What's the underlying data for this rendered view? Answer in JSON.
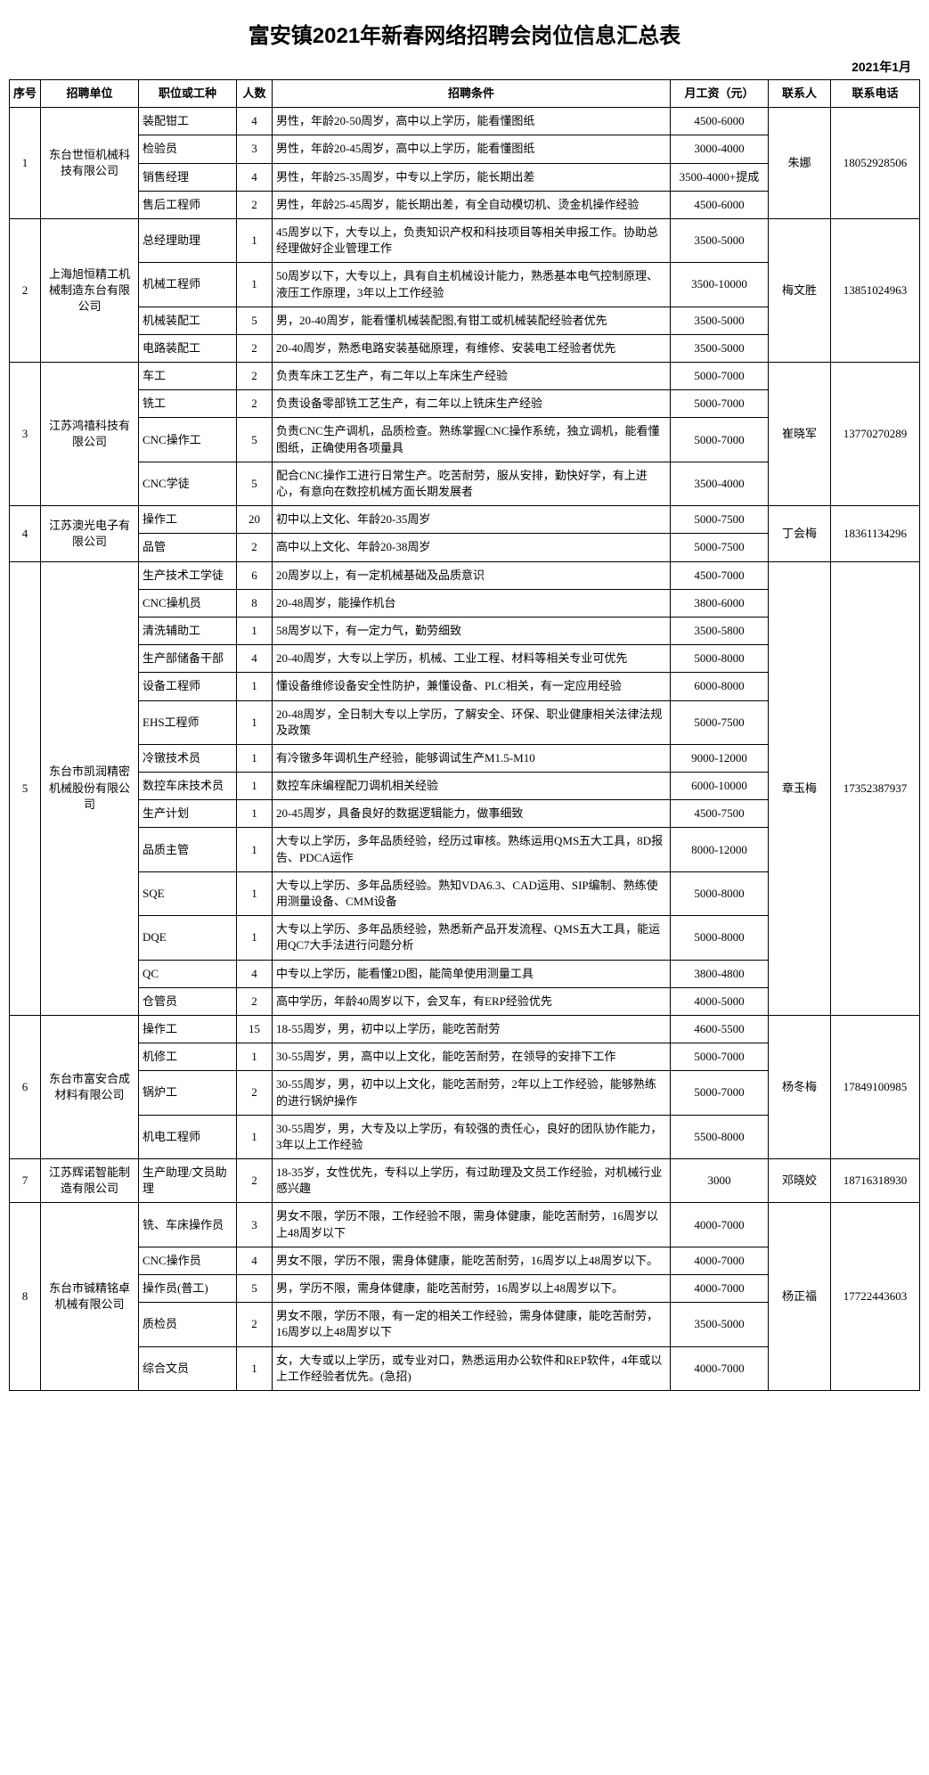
{
  "title": "富安镇2021年新春网络招聘会岗位信息汇总表",
  "date": "2021年1月",
  "headers": {
    "idx": "序号",
    "company": "招聘单位",
    "position": "职位或工种",
    "count": "人数",
    "requirements": "招聘条件",
    "salary": "月工资（元）",
    "contact": "联系人",
    "phone": "联系电话"
  },
  "companies": [
    {
      "idx": "1",
      "name": "东台世恒机械科技有限公司",
      "contact": "朱娜",
      "phone": "18052928506",
      "positions": [
        {
          "pos": "装配钳工",
          "count": "4",
          "req": "男性，年龄20-50周岁，高中以上学历，能看懂图纸",
          "salary": "4500-6000"
        },
        {
          "pos": "检验员",
          "count": "3",
          "req": "男性，年龄20-45周岁，高中以上学历，能看懂图纸",
          "salary": "3000-4000"
        },
        {
          "pos": "销售经理",
          "count": "4",
          "req": "男性，年龄25-35周岁，中专以上学历，能长期出差",
          "salary": "3500-4000+提成"
        },
        {
          "pos": "售后工程师",
          "count": "2",
          "req": "男性，年龄25-45周岁，能长期出差，有全自动模切机、烫金机操作经验",
          "salary": "4500-6000"
        }
      ]
    },
    {
      "idx": "2",
      "name": "上海旭恒精工机械制造东台有限公司",
      "contact": "梅文胜",
      "phone": "13851024963",
      "positions": [
        {
          "pos": "总经理助理",
          "count": "1",
          "req": "45周岁以下，大专以上，负责知识产权和科技项目等相关申报工作。协助总经理做好企业管理工作",
          "salary": "3500-5000"
        },
        {
          "pos": "机械工程师",
          "count": "1",
          "req": "50周岁以下，大专以上，具有自主机械设计能力，熟悉基本电气控制原理、液压工作原理，3年以上工作经验",
          "salary": "3500-10000"
        },
        {
          "pos": "机械装配工",
          "count": "5",
          "req": "男，20-40周岁，能看懂机械装配图,有钳工或机械装配经验者优先",
          "salary": "3500-5000"
        },
        {
          "pos": "电路装配工",
          "count": "2",
          "req": "20-40周岁，熟悉电路安装基础原理，有维修、安装电工经验者优先",
          "salary": "3500-5000"
        }
      ]
    },
    {
      "idx": "3",
      "name": "江苏鸿禧科技有限公司",
      "contact": "崔晓军",
      "phone": "13770270289",
      "positions": [
        {
          "pos": "车工",
          "count": "2",
          "req": "负责车床工艺生产，有二年以上车床生产经验",
          "salary": "5000-7000"
        },
        {
          "pos": "铣工",
          "count": "2",
          "req": "负责设备零部铣工艺生产，有二年以上铣床生产经验",
          "salary": "5000-7000"
        },
        {
          "pos": "CNC操作工",
          "count": "5",
          "req": "负责CNC生产调机，品质检查。熟练掌握CNC操作系统，独立调机，能看懂图纸，正确使用各项量具",
          "salary": "5000-7000"
        },
        {
          "pos": "CNC学徒",
          "count": "5",
          "req": "配合CNC操作工进行日常生产。吃苦耐劳，服从安排，勤快好学，有上进心，有意向在数控机械方面长期发展者",
          "salary": "3500-4000"
        }
      ]
    },
    {
      "idx": "4",
      "name": "江苏澳光电子有限公司",
      "contact": "丁会梅",
      "phone": "18361134296",
      "positions": [
        {
          "pos": "操作工",
          "count": "20",
          "req": "初中以上文化、年龄20-35周岁",
          "salary": "5000-7500"
        },
        {
          "pos": "品管",
          "count": "2",
          "req": "高中以上文化、年龄20-38周岁",
          "salary": "5000-7500"
        }
      ]
    },
    {
      "idx": "5",
      "name": "东台市凯润精密机械股份有限公司",
      "contact": "章玉梅",
      "phone": "17352387937",
      "positions": [
        {
          "pos": "生产技术工学徒",
          "count": "6",
          "req": "20周岁以上，有一定机械基础及品质意识",
          "salary": "4500-7000"
        },
        {
          "pos": "CNC操机员",
          "count": "8",
          "req": "20-48周岁，能操作机台",
          "salary": "3800-6000"
        },
        {
          "pos": "清洗辅助工",
          "count": "1",
          "req": "58周岁以下，有一定力气，勤劳细致",
          "salary": "3500-5800"
        },
        {
          "pos": "生产部储备干部",
          "count": "4",
          "req": "20-40周岁，大专以上学历，机械、工业工程、材料等相关专业可优先",
          "salary": "5000-8000"
        },
        {
          "pos": "设备工程师",
          "count": "1",
          "req": "懂设备维修设备安全性防护，兼懂设备、PLC相关，有一定应用经验",
          "salary": "6000-8000"
        },
        {
          "pos": "EHS工程师",
          "count": "1",
          "req": "20-48周岁，全日制大专以上学历，了解安全、环保、职业健康相关法律法规及政策",
          "salary": "5000-7500"
        },
        {
          "pos": "冷镦技术员",
          "count": "1",
          "req": "有冷镦多年调机生产经验，能够调试生产M1.5-M10",
          "salary": "9000-12000"
        },
        {
          "pos": "数控车床技术员",
          "count": "1",
          "req": "数控车床编程配刀调机相关经验",
          "salary": "6000-10000"
        },
        {
          "pos": "生产计划",
          "count": "1",
          "req": "20-45周岁，具备良好的数据逻辑能力，做事细致",
          "salary": "4500-7500"
        },
        {
          "pos": "品质主管",
          "count": "1",
          "req": "大专以上学历，多年品质经验，经历过审核。熟练运用QMS五大工具，8D报告、PDCA运作",
          "salary": "8000-12000"
        },
        {
          "pos": "SQE",
          "count": "1",
          "req": "大专以上学历、多年品质经验。熟知VDA6.3、CAD运用、SIP编制、熟练使用测量设备、CMM设备",
          "salary": "5000-8000"
        },
        {
          "pos": "DQE",
          "count": "1",
          "req": "大专以上学历、多年品质经验，熟悉新产品开发流程、QMS五大工具，能运用QC7大手法进行问题分析",
          "salary": "5000-8000"
        },
        {
          "pos": "QC",
          "count": "4",
          "req": "中专以上学历，能看懂2D图，能简单使用测量工具",
          "salary": "3800-4800"
        },
        {
          "pos": "仓管员",
          "count": "2",
          "req": "高中学历，年龄40周岁以下，会叉车，有ERP经验优先",
          "salary": "4000-5000"
        }
      ]
    },
    {
      "idx": "6",
      "name": "东台市富安合成材料有限公司",
      "contact": "杨冬梅",
      "phone": "17849100985",
      "positions": [
        {
          "pos": "操作工",
          "count": "15",
          "req": "18-55周岁，男，初中以上学历，能吃苦耐劳",
          "salary": "4600-5500"
        },
        {
          "pos": "机修工",
          "count": "1",
          "req": "30-55周岁，男，高中以上文化，能吃苦耐劳，在领导的安排下工作",
          "salary": "5000-7000"
        },
        {
          "pos": "锅炉工",
          "count": "2",
          "req": "30-55周岁，男，初中以上文化，能吃苦耐劳，2年以上工作经验，能够熟练的进行锅炉操作",
          "salary": "5000-7000"
        },
        {
          "pos": "机电工程师",
          "count": "1",
          "req": "30-55周岁，男，大专及以上学历，有较强的责任心，良好的团队协作能力，3年以上工作经验",
          "salary": "5500-8000"
        }
      ]
    },
    {
      "idx": "7",
      "name": "江苏辉诺智能制造有限公司",
      "contact": "邓晓姣",
      "phone": "18716318930",
      "positions": [
        {
          "pos": "生产助理/文员助理",
          "count": "2",
          "req": "18-35岁，女性优先，专科以上学历，有过助理及文员工作经验，对机械行业感兴趣",
          "salary": "3000"
        }
      ]
    },
    {
      "idx": "8",
      "name": "东台市铖精铭卓机械有限公司",
      "contact": "杨正福",
      "phone": "17722443603",
      "positions": [
        {
          "pos": "铣、车床操作员",
          "count": "3",
          "req": "男女不限，学历不限，工作经验不限，需身体健康，能吃苦耐劳，16周岁以上48周岁以下",
          "salary": "4000-7000"
        },
        {
          "pos": "CNC操作员",
          "count": "4",
          "req": "男女不限，学历不限，需身体健康，能吃苦耐劳，16周岁以上48周岁以下。",
          "salary": "4000-7000"
        },
        {
          "pos": "操作员(普工)",
          "count": "5",
          "req": "男，学历不限，需身体健康，能吃苦耐劳，16周岁以上48周岁以下。",
          "salary": "4000-7000"
        },
        {
          "pos": "质检员",
          "count": "2",
          "req": "男女不限，学历不限，有一定的相关工作经验，需身体健康，能吃苦耐劳，16周岁以上48周岁以下",
          "salary": "3500-5000"
        },
        {
          "pos": "综合文员",
          "count": "1",
          "req": "女，大专或以上学历，或专业对口，熟悉运用办公软件和REP软件，4年或以上工作经验者优先。(急招)",
          "salary": "4000-7000"
        }
      ]
    }
  ]
}
